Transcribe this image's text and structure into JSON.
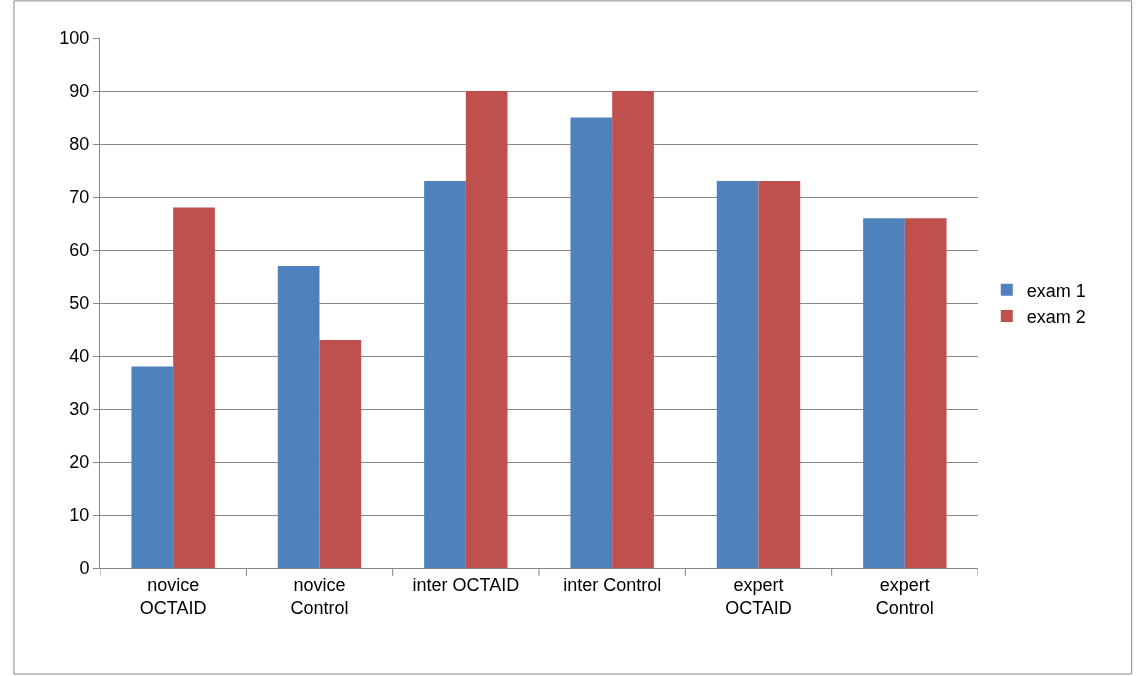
{
  "chart_data": {
    "type": "bar",
    "categories": [
      "novice\nOCTAID",
      "novice\nControl",
      "inter OCTAID",
      "inter Control",
      "expert\nOCTAID",
      "expert\nControl"
    ],
    "series": [
      {
        "name": "exam 1",
        "color": "#4f81bd",
        "values": [
          38,
          57,
          73,
          85,
          73,
          66
        ]
      },
      {
        "name": "exam 2",
        "color": "#c0504d",
        "values": [
          68,
          43,
          90,
          90,
          73,
          66
        ]
      }
    ],
    "ylim": [
      0,
      100
    ],
    "yticks": [
      0,
      10,
      20,
      30,
      40,
      50,
      60,
      70,
      80,
      90,
      100
    ],
    "grid": "y",
    "legend": "right"
  }
}
